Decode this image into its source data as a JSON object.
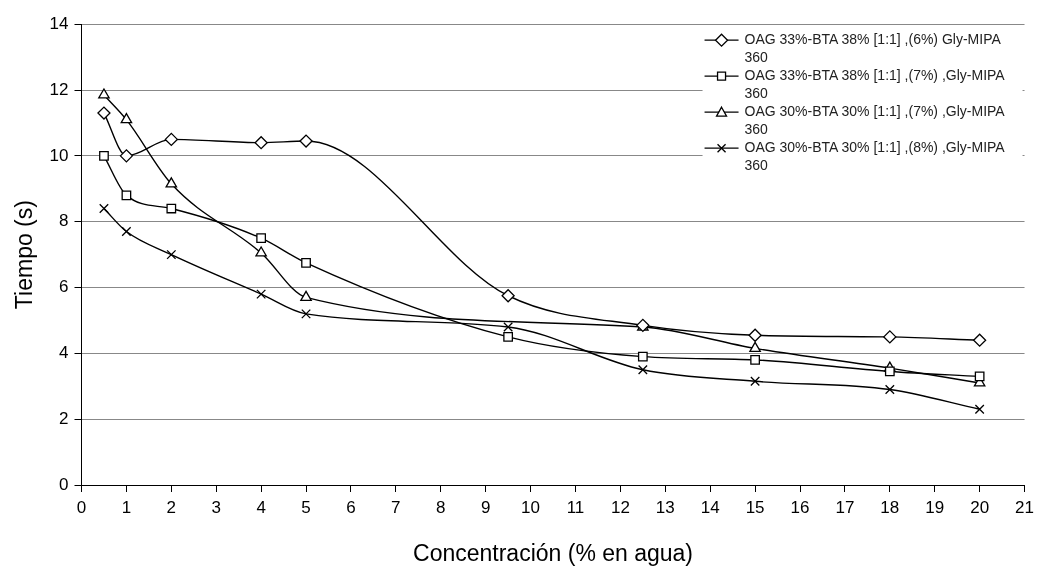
{
  "chart_data": {
    "type": "line",
    "xlabel": "Concentración (% en agua)",
    "ylabel": "Tiempo (s)",
    "x": [
      0.5,
      1,
      2,
      4,
      5,
      9.5,
      12.5,
      15,
      18,
      20
    ],
    "series": [
      {
        "name": "OAG 33%-BTA 38% [1:1] ,(6%) Gly-MIPA 360",
        "color": "#000000",
        "marker": "diamond",
        "values": [
          11.3,
          10.0,
          10.5,
          10.4,
          10.45,
          5.75,
          4.85,
          4.55,
          4.5,
          4.4
        ]
      },
      {
        "name": "OAG 33%-BTA 38% [1:1] ,(7%) ,Gly-MIPA 360",
        "color": "#000000",
        "marker": "square",
        "values": [
          10.0,
          8.8,
          8.4,
          7.5,
          6.75,
          4.5,
          3.9,
          3.8,
          3.45,
          3.3
        ]
      },
      {
        "name": "OAG 30%-BTA 30% [1:1] ,(7%) ,Gly-MIPA 360",
        "color": "#000000",
        "marker": "triangle",
        "values": [
          11.85,
          11.1,
          9.15,
          7.05,
          5.7,
          null,
          4.8,
          4.15,
          3.55,
          3.1
        ]
      },
      {
        "name": "OAG 30%-BTA 30% [1:1] ,(8%) ,Gly-MIPA 360",
        "color": "#000000",
        "marker": "cross",
        "values": [
          8.4,
          7.7,
          7.0,
          5.8,
          5.2,
          4.8,
          3.5,
          3.15,
          2.9,
          2.3
        ]
      }
    ],
    "xlim": [
      0,
      21
    ],
    "xticks": [
      0,
      1,
      2,
      3,
      4,
      5,
      6,
      7,
      8,
      9,
      10,
      11,
      12,
      13,
      14,
      15,
      16,
      17,
      18,
      19,
      20,
      21
    ],
    "ylim": [
      0,
      14
    ],
    "yticks": [
      0,
      2,
      4,
      6,
      8,
      10,
      12,
      14
    ],
    "grid": "y",
    "legend": "top right"
  }
}
